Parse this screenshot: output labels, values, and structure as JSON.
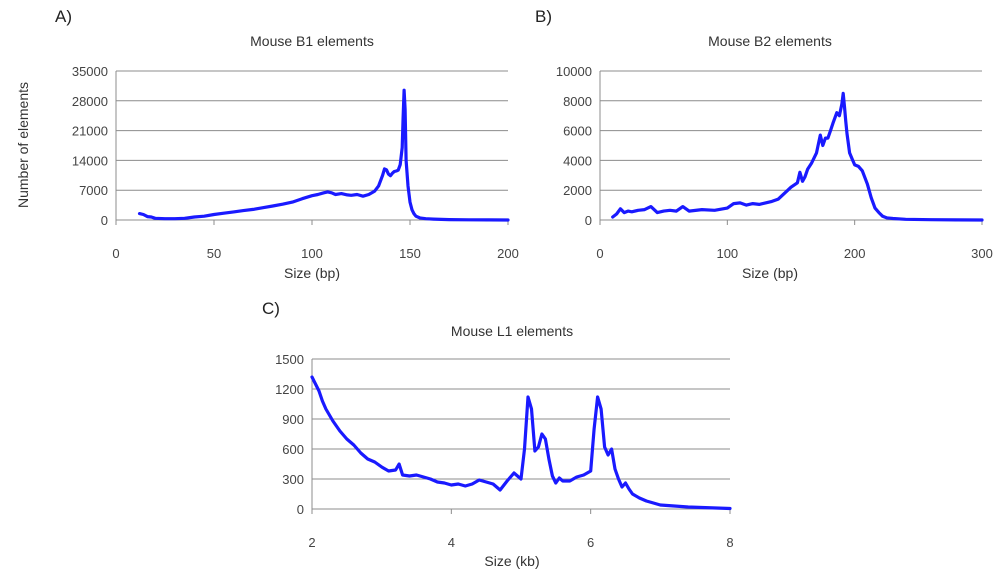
{
  "chart_data": [
    {
      "id": "A",
      "type": "line",
      "panel_label": "A)",
      "title": "Mouse B1 elements",
      "xlabel": "Size (bp)",
      "ylabel": "Number of elements",
      "xlim": [
        0,
        200
      ],
      "ylim": [
        0,
        35000
      ],
      "xticks": [
        0,
        50,
        100,
        150,
        200
      ],
      "yticks": [
        0,
        7000,
        14000,
        21000,
        28000,
        35000
      ],
      "grid": true,
      "color": "#1a1aff",
      "series": [
        {
          "x": [
            12,
            14,
            16,
            18,
            20,
            25,
            30,
            35,
            40,
            45,
            50,
            55,
            60,
            65,
            70,
            75,
            80,
            85,
            90,
            95,
            100,
            103,
            106,
            108,
            110,
            112,
            115,
            118,
            120,
            123,
            126,
            129,
            132,
            134,
            136,
            137,
            138,
            139,
            140,
            141,
            142,
            143,
            144,
            145,
            146,
            146.5,
            147,
            147.5,
            148,
            149,
            150,
            151,
            152,
            153,
            155,
            158,
            162,
            170,
            180,
            190,
            200
          ],
          "y": [
            1500,
            1300,
            800,
            700,
            400,
            300,
            300,
            400,
            700,
            900,
            1300,
            1600,
            1900,
            2200,
            2500,
            2900,
            3300,
            3700,
            4200,
            5000,
            5700,
            6000,
            6400,
            6600,
            6400,
            6000,
            6200,
            5900,
            5800,
            6000,
            5600,
            6000,
            6800,
            8000,
            10500,
            12000,
            11800,
            10800,
            10400,
            11000,
            11400,
            11500,
            11700,
            13000,
            17000,
            24000,
            30500,
            26000,
            14000,
            8000,
            4200,
            2400,
            1500,
            900,
            500,
            300,
            200,
            100,
            50,
            20,
            0
          ]
        }
      ]
    },
    {
      "id": "B",
      "type": "line",
      "panel_label": "B)",
      "title": "Mouse B2 elements",
      "xlabel": "Size (bp)",
      "ylabel": "",
      "xlim": [
        0,
        300
      ],
      "ylim": [
        0,
        10000
      ],
      "xticks": [
        0,
        100,
        200,
        300
      ],
      "yticks": [
        0,
        2000,
        4000,
        6000,
        8000,
        10000
      ],
      "grid": true,
      "color": "#1a1aff",
      "series": [
        {
          "x": [
            10,
            13,
            16,
            19,
            22,
            25,
            30,
            35,
            40,
            45,
            50,
            55,
            60,
            65,
            70,
            80,
            90,
            100,
            105,
            110,
            115,
            120,
            125,
            130,
            135,
            140,
            145,
            150,
            155,
            157,
            159,
            161,
            163,
            166,
            170,
            173,
            175,
            177,
            179,
            181,
            183,
            186,
            188,
            190,
            191,
            192,
            193,
            194,
            196,
            198,
            200,
            203,
            206,
            210,
            213,
            216,
            219,
            222,
            225,
            230,
            240,
            260,
            280,
            300
          ],
          "y": [
            200,
            400,
            750,
            500,
            600,
            550,
            650,
            700,
            900,
            500,
            600,
            650,
            600,
            900,
            600,
            700,
            650,
            800,
            1100,
            1150,
            1000,
            1100,
            1050,
            1150,
            1250,
            1400,
            1800,
            2200,
            2500,
            3200,
            2600,
            2900,
            3400,
            3800,
            4500,
            5700,
            5000,
            5500,
            5500,
            6000,
            6500,
            7200,
            7000,
            7800,
            8500,
            7600,
            6600,
            5800,
            4500,
            4100,
            3700,
            3600,
            3300,
            2400,
            1500,
            800,
            500,
            250,
            150,
            100,
            50,
            20,
            10,
            0
          ]
        }
      ]
    },
    {
      "id": "C",
      "type": "line",
      "panel_label": "C)",
      "title": "Mouse L1 elements",
      "xlabel": "Size (kb)",
      "ylabel": "",
      "xlim": [
        2,
        8
      ],
      "ylim": [
        0,
        1500
      ],
      "xticks": [
        2,
        4,
        6,
        8
      ],
      "yticks": [
        0,
        300,
        600,
        900,
        1200,
        1500
      ],
      "grid": true,
      "color": "#1a1aff",
      "series": [
        {
          "x": [
            2.0,
            2.05,
            2.1,
            2.15,
            2.2,
            2.3,
            2.4,
            2.5,
            2.6,
            2.7,
            2.8,
            2.9,
            3.0,
            3.1,
            3.2,
            3.25,
            3.3,
            3.4,
            3.5,
            3.6,
            3.7,
            3.8,
            3.9,
            4.0,
            4.1,
            4.2,
            4.3,
            4.4,
            4.5,
            4.6,
            4.7,
            4.8,
            4.9,
            5.0,
            5.05,
            5.1,
            5.15,
            5.2,
            5.25,
            5.3,
            5.35,
            5.4,
            5.45,
            5.5,
            5.55,
            5.6,
            5.7,
            5.8,
            5.9,
            6.0,
            6.05,
            6.1,
            6.15,
            6.2,
            6.25,
            6.3,
            6.35,
            6.4,
            6.45,
            6.5,
            6.55,
            6.6,
            6.7,
            6.8,
            6.9,
            7.0,
            7.2,
            7.4,
            7.6,
            7.8,
            8.0
          ],
          "y": [
            1320,
            1250,
            1180,
            1080,
            1000,
            880,
            780,
            700,
            640,
            560,
            500,
            470,
            420,
            380,
            390,
            450,
            340,
            330,
            340,
            320,
            300,
            270,
            260,
            240,
            250,
            230,
            250,
            290,
            270,
            250,
            190,
            280,
            360,
            300,
            600,
            1120,
            1000,
            580,
            620,
            750,
            700,
            500,
            330,
            260,
            310,
            280,
            280,
            320,
            340,
            380,
            800,
            1120,
            1000,
            620,
            540,
            600,
            400,
            300,
            220,
            260,
            200,
            150,
            110,
            80,
            60,
            40,
            30,
            20,
            15,
            10,
            5
          ]
        }
      ]
    }
  ]
}
